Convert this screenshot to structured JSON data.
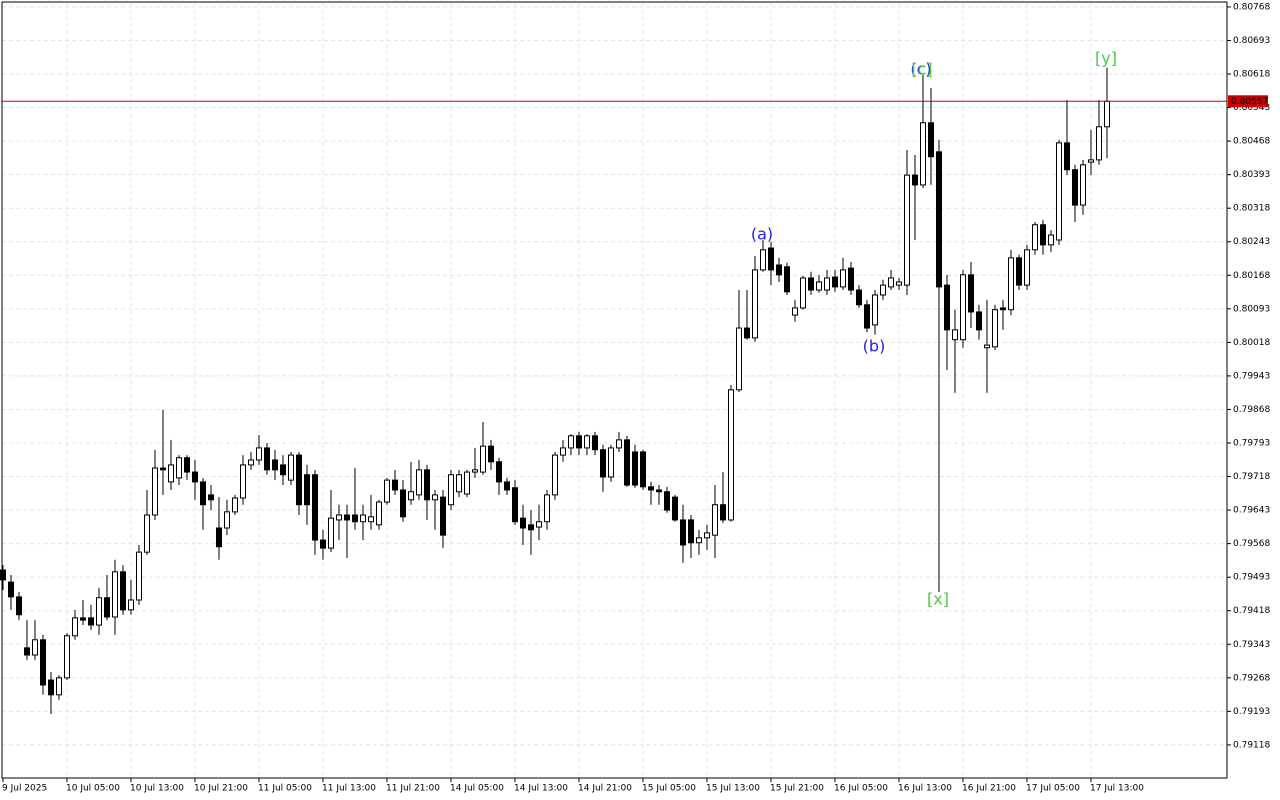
{
  "chart_data": {
    "type": "candlestick",
    "categories": [
      "9 Jul 2025",
      null,
      null,
      null,
      null,
      null,
      null,
      null,
      "10 Jul 05:00",
      null,
      null,
      null,
      null,
      null,
      null,
      null,
      "10 Jul 13:00",
      null,
      null,
      null,
      null,
      null,
      null,
      null,
      "10 Jul 21:00",
      null,
      null,
      null,
      null,
      null,
      null,
      null,
      "11 Jul 05:00",
      null,
      null,
      null,
      null,
      null,
      null,
      null,
      "11 Jul 13:00",
      null,
      null,
      null,
      null,
      null,
      null,
      null,
      "11 Jul 21:00",
      null,
      null,
      null,
      null,
      null,
      null,
      null,
      "14 Jul 05:00",
      null,
      null,
      null,
      null,
      null,
      null,
      null,
      "14 Jul 13:00",
      null,
      null,
      null,
      null,
      null,
      null,
      null,
      "14 Jul 21:00",
      null,
      null,
      null,
      null,
      null,
      null,
      null,
      "15 Jul 05:00",
      null,
      null,
      null,
      null,
      null,
      null,
      null,
      "15 Jul 13:00",
      null,
      null,
      null,
      null,
      null,
      null,
      null,
      "15 Jul 21:00",
      null,
      null,
      null,
      null,
      null,
      null,
      null,
      "16 Jul 05:00",
      null,
      null,
      null,
      null,
      null,
      null,
      null,
      "16 Jul 13:00",
      null,
      null,
      null,
      null,
      null,
      null,
      null,
      "16 Jul 21:00",
      null,
      null,
      null,
      null,
      null,
      null,
      null,
      "17 Jul 05:00",
      null,
      null,
      null,
      null,
      null,
      null,
      null,
      "17 Jul 13:00",
      null,
      null
    ],
    "open": [
      0.79509,
      0.79482,
      0.79449,
      0.79335,
      0.79319,
      0.79353,
      0.79263,
      0.7923,
      0.79268,
      0.79362,
      0.79402,
      0.79402,
      0.79386,
      0.79447,
      0.79404,
      0.79505,
      0.7942,
      0.79442,
      0.79549,
      0.79632,
      0.79737,
      0.79706,
      0.79715,
      0.7976,
      0.79728,
      0.79706,
      0.79677,
      0.79603,
      0.79603,
      0.79639,
      0.7967,
      0.79744,
      0.79755,
      0.79782,
      0.79755,
      0.79744,
      0.7971,
      0.79766,
      0.79722,
      0.79722,
      0.79576,
      0.79558,
      0.79621,
      0.79632,
      0.79632,
      0.79617,
      0.79617,
      0.7961,
      0.79661,
      0.7971,
      0.79688,
      0.79666,
      0.79677,
      0.79733,
      0.79666,
      0.79672,
      0.79655,
      0.79684,
      0.79679,
      0.79728,
      0.79728,
      0.79786,
      0.79751,
      0.79706,
      0.79693,
      0.79625,
      0.7961,
      0.79605,
      0.79617,
      0.79677,
      0.79766,
      0.79782,
      0.79809,
      0.79782,
      0.79809,
      0.79778,
      0.79717,
      0.79782,
      0.798,
      0.79773,
      0.79773,
      0.79695,
      0.79688,
      0.79684,
      0.79672,
      0.79621,
      0.79621,
      0.7957,
      0.79581,
      0.79587,
      0.79655,
      0.79621,
      0.79912,
      0.8005,
      0.80028,
      0.8018,
      0.80229,
      0.80191,
      0.80187,
      0.80079,
      0.80095,
      0.80162,
      0.80135,
      0.80135,
      0.80164,
      0.80142,
      0.80184,
      0.80135,
      0.80102,
      0.80057,
      0.80124,
      0.80142,
      0.80146,
      0.80146,
      0.80392,
      0.8037,
      0.80509,
      0.80444,
      0.80146,
      0.80024,
      0.80024,
      0.80169,
      0.80086,
      0.80006,
      0.80008,
      0.80095,
      0.80091,
      0.80207,
      0.80146,
      0.80225,
      0.80281,
      0.80236,
      0.80247,
      0.80464,
      0.80404,
      0.80325,
      0.80421,
      0.80426,
      0.805
    ],
    "high": [
      0.7952,
      0.79498,
      0.7946,
      0.79397,
      0.79397,
      0.79364,
      0.79281,
      0.79274,
      0.79368,
      0.7942,
      0.79442,
      0.79431,
      0.79469,
      0.79498,
      0.79532,
      0.7952,
      0.79487,
      0.79565,
      0.79688,
      0.79778,
      0.79867,
      0.798,
      0.79766,
      0.79766,
      0.79755,
      0.79715,
      0.79699,
      0.79672,
      0.79666,
      0.79677,
      0.79766,
      0.79773,
      0.79811,
      0.79793,
      0.79778,
      0.79766,
      0.79773,
      0.79773,
      0.79744,
      0.79733,
      0.79599,
      0.79688,
      0.79655,
      0.79655,
      0.79737,
      0.79655,
      0.79677,
      0.79666,
      0.79715,
      0.79733,
      0.7971,
      0.79751,
      0.79755,
      0.79744,
      0.79688,
      0.79688,
      0.79733,
      0.79733,
      0.79733,
      0.79782,
      0.7984,
      0.798,
      0.7976,
      0.79715,
      0.7971,
      0.79655,
      0.79643,
      0.79655,
      0.79688,
      0.79773,
      0.798,
      0.79813,
      0.79818,
      0.79813,
      0.79818,
      0.79789,
      0.79789,
      0.79818,
      0.79809,
      0.79789,
      0.79778,
      0.79706,
      0.79699,
      0.79695,
      0.79677,
      0.79655,
      0.79632,
      0.79599,
      0.7961,
      0.79699,
      0.79728,
      0.79923,
      0.80135,
      0.80135,
      0.80211,
      0.80247,
      0.80243,
      0.80207,
      0.80196,
      0.80113,
      0.80167,
      0.80176,
      0.80169,
      0.8018,
      0.8018,
      0.80207,
      0.80198,
      0.80146,
      0.80113,
      0.80135,
      0.80158,
      0.8018,
      0.80162,
      0.80448,
      0.80437,
      0.80616,
      0.80587,
      0.80471,
      0.80169,
      0.80091,
      0.8018,
      0.80198,
      0.80102,
      0.80113,
      0.80102,
      0.80113,
      0.80225,
      0.80214,
      0.80236,
      0.80287,
      0.80292,
      0.80269,
      0.80471,
      0.8056,
      0.80415,
      0.80426,
      0.80493,
      0.8056,
      0.80632
    ],
    "low": [
      0.79464,
      0.7942,
      0.79397,
      0.79308,
      0.79308,
      0.7923,
      0.79187,
      0.79219,
      0.79263,
      0.79353,
      0.79386,
      0.79375,
      0.79364,
      0.79397,
      0.79364,
      0.79409,
      0.79409,
      0.79431,
      0.79543,
      0.79621,
      0.79677,
      0.79688,
      0.79699,
      0.7971,
      0.79666,
      0.79599,
      0.79643,
      0.79532,
      0.79587,
      0.79632,
      0.79655,
      0.79733,
      0.79744,
      0.79722,
      0.7971,
      0.79699,
      0.79699,
      0.79632,
      0.7961,
      0.79543,
      0.79532,
      0.79549,
      0.79576,
      0.79536,
      0.79599,
      0.79576,
      0.79599,
      0.79599,
      0.79655,
      0.79677,
      0.79617,
      0.79655,
      0.79666,
      0.79621,
      0.79599,
      0.79558,
      0.79643,
      0.79672,
      0.79672,
      0.79715,
      0.79722,
      0.79733,
      0.79677,
      0.79677,
      0.7961,
      0.79565,
      0.79543,
      0.79576,
      0.79599,
      0.79666,
      0.79751,
      0.79766,
      0.79766,
      0.79766,
      0.79766,
      0.79684,
      0.79706,
      0.79773,
      0.79695,
      0.79693,
      0.79688,
      0.79655,
      0.79655,
      0.79637,
      0.79617,
      0.79525,
      0.79536,
      0.79543,
      0.79554,
      0.79536,
      0.79614,
      0.79617,
      0.79907,
      0.80024,
      0.80019,
      0.80176,
      0.80146,
      0.80153,
      0.80124,
      0.80064,
      0.80091,
      0.80124,
      0.80129,
      0.80124,
      0.80131,
      0.80135,
      0.80124,
      0.80095,
      0.80041,
      0.80035,
      0.80113,
      0.80135,
      0.80135,
      0.80124,
      0.80247,
      0.80363,
      0.8037,
      0.7946,
      0.79956,
      0.79905,
      0.80006,
      0.8005,
      0.80024,
      0.79905,
      0.80001,
      0.80046,
      0.80079,
      0.80135,
      0.80135,
      0.80214,
      0.80214,
      0.8022,
      0.80236,
      0.80392,
      0.80287,
      0.80303,
      0.80392,
      0.80415,
      0.8043
    ],
    "close": [
      0.79487,
      0.79449,
      0.79409,
      0.79319,
      0.79353,
      0.79252,
      0.7923,
      0.79268,
      0.79362,
      0.79402,
      0.79397,
      0.79386,
      0.79447,
      0.79404,
      0.79505,
      0.7942,
      0.79442,
      0.79549,
      0.79632,
      0.79737,
      0.79733,
      0.79744,
      0.7976,
      0.79728,
      0.79706,
      0.79655,
      0.79666,
      0.79561,
      0.79639,
      0.7967,
      0.79744,
      0.79755,
      0.79782,
      0.79733,
      0.79733,
      0.79722,
      0.79766,
      0.79655,
      0.79655,
      0.79576,
      0.79558,
      0.79625,
      0.79632,
      0.79621,
      0.79617,
      0.79632,
      0.79628,
      0.79661,
      0.7971,
      0.79688,
      0.79628,
      0.79684,
      0.79733,
      0.79666,
      0.79677,
      0.79587,
      0.79722,
      0.79722,
      0.79728,
      0.79733,
      0.79786,
      0.79751,
      0.79706,
      0.79688,
      0.79617,
      0.79603,
      0.79599,
      0.79617,
      0.79677,
      0.79766,
      0.79782,
      0.79809,
      0.79782,
      0.79809,
      0.79778,
      0.79717,
      0.79782,
      0.798,
      0.79699,
      0.79699,
      0.79695,
      0.79688,
      0.79684,
      0.79643,
      0.79621,
      0.79565,
      0.7957,
      0.79581,
      0.79592,
      0.79655,
      0.79621,
      0.79912,
      0.8005,
      0.80028,
      0.8018,
      0.80225,
      0.8018,
      0.80169,
      0.80131,
      0.80095,
      0.80162,
      0.80135,
      0.80153,
      0.80162,
      0.80142,
      0.8018,
      0.80135,
      0.80102,
      0.8005,
      0.80124,
      0.80146,
      0.80162,
      0.80153,
      0.80392,
      0.8037,
      0.80509,
      0.80433,
      0.80142,
      0.80046,
      0.80046,
      0.80169,
      0.80086,
      0.80046,
      0.80012,
      0.80091,
      0.80091,
      0.80207,
      0.80146,
      0.80225,
      0.80281,
      0.80236,
      0.80258,
      0.80464,
      0.80404,
      0.80325,
      0.80415,
      0.80426,
      0.805,
      0.80557
    ],
    "up_color": "#ffffff",
    "down_color": "#000000",
    "ylim": [
      0.79044,
      0.80779
    ],
    "yticks": [
      0.80768,
      0.80693,
      0.80618,
      0.80543,
      0.80468,
      0.80393,
      0.80318,
      0.80243,
      0.80168,
      0.80093,
      0.80018,
      0.79943,
      0.79868,
      0.79793,
      0.79718,
      0.79643,
      0.79568,
      0.79493,
      0.79418,
      0.79343,
      0.79268,
      0.79193,
      0.79118
    ],
    "grid": true,
    "current_price": 0.80557,
    "current_price_color": "#c80000",
    "annotations": [
      {
        "text": "(a)",
        "color": "#2323e6"
      },
      {
        "text": "(b)",
        "color": "#2323e6"
      },
      {
        "text": "(c)",
        "color": "#2323e6"
      },
      {
        "text": "[c]",
        "color": "#4cc84c"
      },
      {
        "text": "[x]",
        "color": "#4cc84c"
      },
      {
        "text": "[y]",
        "color": "#4cc84c"
      }
    ]
  }
}
